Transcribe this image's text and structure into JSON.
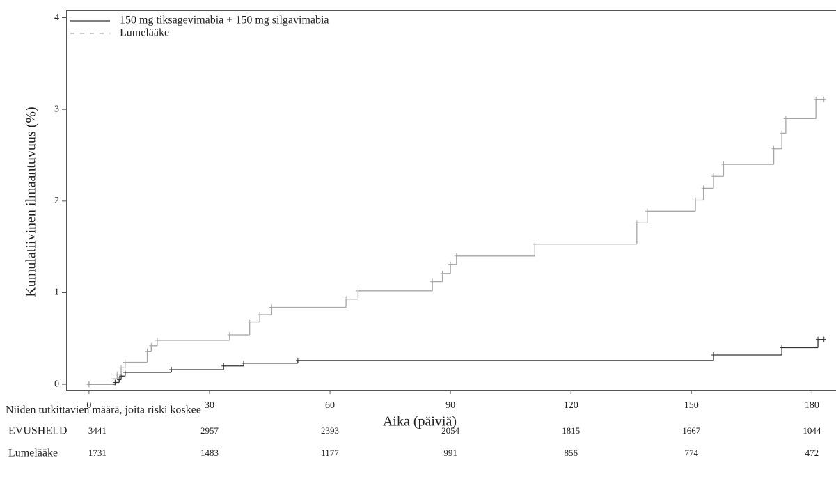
{
  "chart_data": {
    "type": "line",
    "step": true,
    "y_label": "Kumulatiivinen ilmaantuvuus (%)",
    "x_label": "Aika (päiviä)",
    "xlim": [
      -5.7,
      186
    ],
    "ylim": [
      -0.06,
      4.08
    ],
    "xticks": [
      0,
      30,
      60,
      90,
      120,
      150,
      180
    ],
    "yticks": [
      0,
      1,
      2,
      3,
      4
    ],
    "legend": "upper left",
    "series": [
      {
        "name": "150 mg tiksagevimabia + 150 mg silgavimabia",
        "color": "#333333",
        "dash": false,
        "x": [
          0,
          6.5,
          7.5,
          8,
          9,
          20.5,
          33.5,
          38.5,
          52,
          155.5,
          172.5,
          181.5,
          183
        ],
        "values": [
          0,
          0.02,
          0.05,
          0.09,
          0.13,
          0.16,
          0.2,
          0.23,
          0.26,
          0.32,
          0.4,
          0.49,
          0.49
        ]
      },
      {
        "name": "Lumelääke",
        "color": "#a6a6a6",
        "dash": true,
        "x": [
          0,
          6,
          7,
          8,
          9,
          14.5,
          15.5,
          17,
          35,
          40,
          42.5,
          45.5,
          64,
          67,
          85.5,
          88,
          90,
          91.5,
          111,
          136.4,
          139,
          151,
          153,
          155.5,
          158,
          170.5,
          172.5,
          173.5,
          181,
          183
        ],
        "values": [
          0,
          0.06,
          0.11,
          0.18,
          0.24,
          0.36,
          0.42,
          0.48,
          0.54,
          0.68,
          0.76,
          0.84,
          0.93,
          1.02,
          1.12,
          1.21,
          1.31,
          1.4,
          1.53,
          1.76,
          1.89,
          2.01,
          2.14,
          2.27,
          2.4,
          2.57,
          2.74,
          2.9,
          3.11,
          3.11
        ]
      }
    ],
    "risk_table": {
      "title": "Niiden tutkittavien määrä, joita riski koskee",
      "rows": [
        {
          "label": "EVUSHELD",
          "values": [
            3441,
            2957,
            2393,
            2054,
            1815,
            1667,
            1044
          ]
        },
        {
          "label": "Lumelääke",
          "values": [
            1731,
            1483,
            1177,
            991,
            856,
            774,
            472
          ]
        }
      ]
    }
  }
}
